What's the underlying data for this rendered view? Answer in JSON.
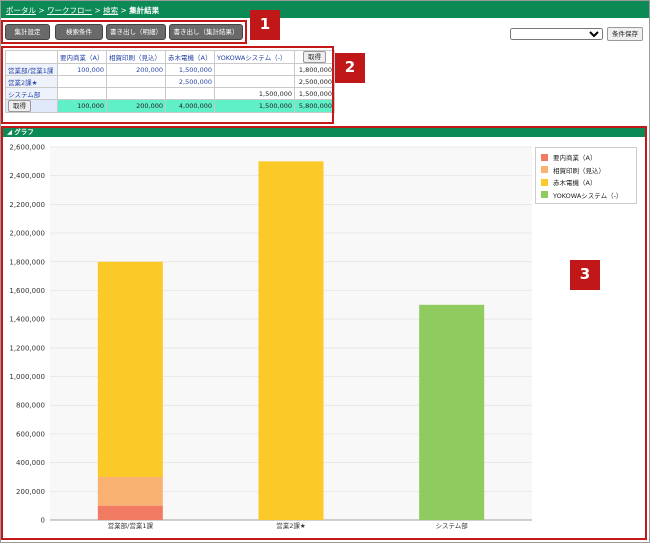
{
  "breadcrumb": {
    "portal": "ポータル",
    "sep1": " > ",
    "workflow": "ワークフロー",
    "sep2": " > ",
    "search": "検索",
    "sep3": " > ",
    "current": "集計結果"
  },
  "toolbar": {
    "buttons": [
      "集計設定",
      "検索条件",
      "書き出し（明細）",
      "書き出し（集計結果）"
    ],
    "select_value": "",
    "save_label": "条件保存"
  },
  "callouts": [
    "1",
    "2",
    "3"
  ],
  "summary": {
    "columns": [
      "要内商業（A）",
      "相賀印刷（見込）",
      "赤木電機（A）",
      "YOKOWAシステム（-）"
    ],
    "get_label": "取得",
    "rows": [
      {
        "label": "営業部/営業1課",
        "values": [
          "100,000",
          "200,000",
          "1,500,000",
          ""
        ],
        "total": "1,800,000"
      },
      {
        "label": "営業2課★",
        "values": [
          "",
          "",
          "2,500,000",
          ""
        ],
        "total": "2,500,000"
      },
      {
        "label": "システム部",
        "values": [
          "",
          "",
          "",
          "1,500,000"
        ],
        "total": "1,500,000"
      }
    ],
    "total_row": {
      "label": "取得",
      "values": [
        "100,000",
        "200,000",
        "4,000,000",
        "1,500,000"
      ],
      "total": "5,800,000"
    }
  },
  "graph": {
    "header": "グラフ"
  },
  "chart_data": {
    "type": "bar",
    "stacked": true,
    "categories": [
      "営業部/営業1課",
      "営業2課★",
      "システム部"
    ],
    "series": [
      {
        "name": "要内商業（A）",
        "color": "#f07a62",
        "values": [
          100000,
          0,
          0
        ]
      },
      {
        "name": "相賀印刷（見込）",
        "color": "#f9b272",
        "values": [
          200000,
          0,
          0
        ]
      },
      {
        "name": "赤木電機（A）",
        "color": "#fbc928",
        "values": [
          1500000,
          2500000,
          0
        ]
      },
      {
        "name": "YOKOWAシステム（-）",
        "color": "#8fcb5e",
        "values": [
          0,
          0,
          1500000
        ]
      }
    ],
    "yticks": [
      "0",
      "200,000",
      "400,000",
      "600,000",
      "800,000",
      "1,000,000",
      "1,200,000",
      "1,400,000",
      "1,600,000",
      "1,800,000",
      "2,000,000",
      "2,200,000",
      "2,400,000",
      "2,600,000"
    ],
    "ylim": [
      0,
      2600000
    ],
    "grid": true,
    "legend": "top-right"
  }
}
